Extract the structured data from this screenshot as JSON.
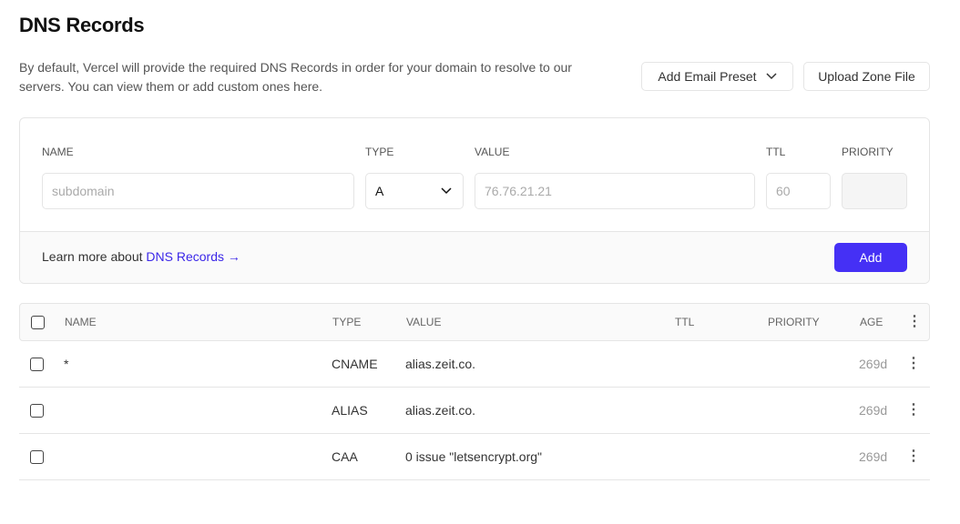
{
  "header": {
    "title": "DNS Records",
    "description": "By default, Vercel will provide the required DNS Records in order for your domain to resolve to our servers. You can view them or add custom ones here.",
    "add_email_preset": "Add Email Preset",
    "upload_zone_file": "Upload Zone File"
  },
  "form": {
    "labels": {
      "name": "NAME",
      "type": "TYPE",
      "value": "VALUE",
      "ttl": "TTL",
      "priority": "PRIORITY"
    },
    "name_placeholder": "subdomain",
    "type_value": "A",
    "value_placeholder": "76.76.21.21",
    "ttl_placeholder": "60",
    "priority_value": "",
    "learn_more": "Learn more about ",
    "learn_more_link": "DNS Records →",
    "add_label": "Add"
  },
  "table": {
    "columns": {
      "name": "NAME",
      "type": "TYPE",
      "value": "VALUE",
      "ttl": "TTL",
      "priority": "PRIORITY",
      "age": "AGE"
    },
    "rows": [
      {
        "name": "*",
        "type": "CNAME",
        "value": "alias.zeit.co.",
        "ttl": "",
        "priority": "",
        "age": "269d"
      },
      {
        "name": "",
        "type": "ALIAS",
        "value": "alias.zeit.co.",
        "ttl": "",
        "priority": "",
        "age": "269d"
      },
      {
        "name": "",
        "type": "CAA",
        "value": "0 issue \"letsencrypt.org\"",
        "ttl": "",
        "priority": "",
        "age": "269d"
      }
    ]
  },
  "colors": {
    "accent": "#4530f5",
    "link": "#3b27e8"
  }
}
